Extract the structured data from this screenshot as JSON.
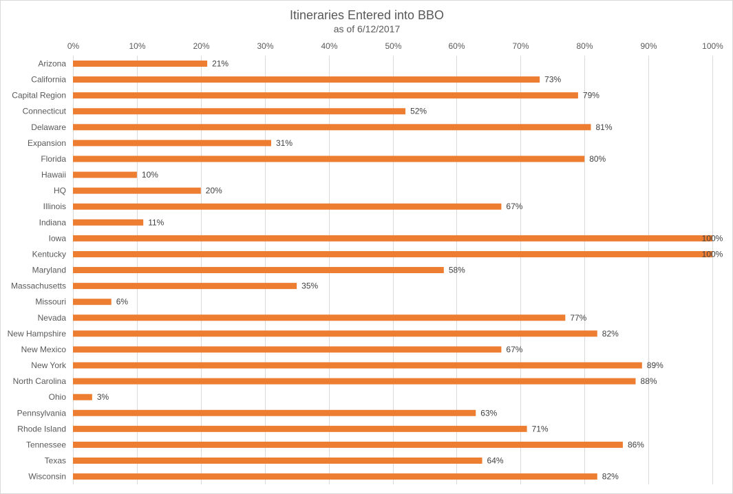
{
  "chart_data": {
    "type": "bar",
    "orientation": "horizontal",
    "title": "Itineraries Entered into BBO",
    "subtitle": "as of 6/12/2017",
    "xlim": [
      0,
      100
    ],
    "x_ticks": [
      "0%",
      "10%",
      "20%",
      "30%",
      "40%",
      "50%",
      "60%",
      "70%",
      "80%",
      "90%",
      "100%"
    ],
    "x_axis_position": "top",
    "grid": true,
    "legend": "none",
    "categories": [
      "Arizona",
      "California",
      "Capital Region",
      "Connecticut",
      "Delaware",
      "Expansion",
      "Florida",
      "Hawaii",
      "HQ",
      "Illinois",
      "Indiana",
      "Iowa",
      "Kentucky",
      "Maryland",
      "Massachusetts",
      "Missouri",
      "Nevada",
      "New Hampshire",
      "New Mexico",
      "New York",
      "North Carolina",
      "Ohio",
      "Pennsylvania",
      "Rhode Island",
      "Tennessee",
      "Texas",
      "Wisconsin"
    ],
    "values": [
      21,
      73,
      79,
      52,
      81,
      31,
      80,
      10,
      20,
      67,
      11,
      100,
      100,
      58,
      35,
      6,
      77,
      82,
      67,
      89,
      88,
      3,
      63,
      71,
      86,
      64,
      82
    ],
    "data_labels": [
      "21%",
      "73%",
      "79%",
      "52%",
      "81%",
      "31%",
      "80%",
      "10%",
      "20%",
      "67%",
      "11%",
      "100%",
      "100%",
      "58%",
      "35%",
      "6%",
      "77%",
      "82%",
      "67%",
      "89%",
      "88%",
      "3%",
      "63%",
      "71%",
      "86%",
      "64%",
      "82%"
    ],
    "bar_color": "#ed7d31"
  }
}
